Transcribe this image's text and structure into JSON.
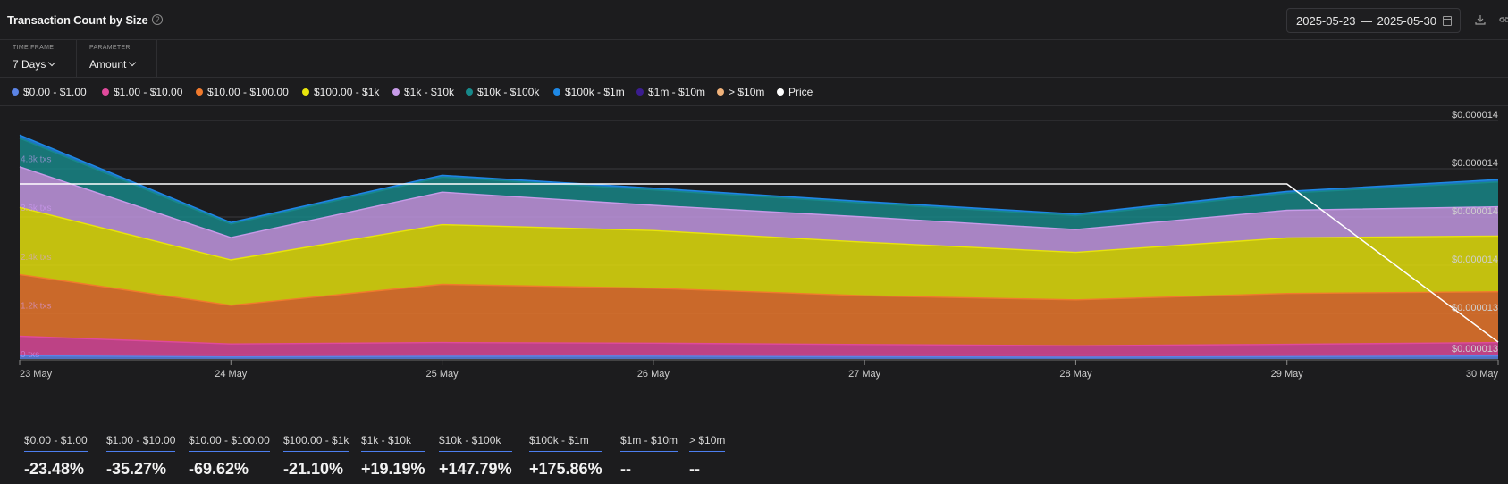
{
  "header": {
    "title": "Transaction Count by Size",
    "help_icon": "question-circle-icon",
    "date_from": "2025-05-23",
    "date_to": "2025-05-30",
    "calendar_icon": "calendar-icon",
    "download_icon": "download-icon",
    "link_icon": "link-icon"
  },
  "controls": {
    "timeframe_label": "TIME FRAME",
    "timeframe_value": "7 Days",
    "parameter_label": "PARAMETER",
    "parameter_value": "Amount"
  },
  "legend": [
    {
      "label": "$0.00 - $1.00",
      "color": "#5b84e6"
    },
    {
      "label": "$1.00 - $10.00",
      "color": "#e04a9c"
    },
    {
      "label": "$10.00 - $100.00",
      "color": "#f07a2d"
    },
    {
      "label": "$100.00 - $1k",
      "color": "#e8e40c"
    },
    {
      "label": "$1k - $10k",
      "color": "#c79be8"
    },
    {
      "label": "$10k - $100k",
      "color": "#17898a"
    },
    {
      "label": "$100k - $1m",
      "color": "#1e88e5"
    },
    {
      "label": "$1m - $10m",
      "color": "#3b1d8f"
    },
    {
      "label": "> $10m",
      "color": "#f0b27a"
    },
    {
      "label": "Price",
      "color": "#ffffff"
    }
  ],
  "chart_data": {
    "type": "area",
    "stacked": true,
    "x": [
      "23 May",
      "24 May",
      "25 May",
      "26 May",
      "27 May",
      "28 May",
      "29 May",
      "30 May"
    ],
    "left_axis_ticks": [
      "0 txs",
      "1.2k txs",
      "2.4k txs",
      "3.6k txs",
      "4.8k txs"
    ],
    "left_axis_values": [
      0,
      1200,
      2400,
      3600,
      4800
    ],
    "right_axis_ticks": [
      "$0.000013",
      "$0.000013",
      "$0.000014",
      "$0.000014",
      "$0.000014",
      "$0.000014"
    ],
    "ylim": [
      0,
      6000
    ],
    "grid": true,
    "legend_position": "top-left",
    "series": [
      {
        "name": "$0.00 - $1.00",
        "color": "#5b84e6",
        "values": [
          80,
          50,
          65,
          70,
          55,
          45,
          60,
          75
        ]
      },
      {
        "name": "$1.00 - $10.00",
        "color": "#e04a9c",
        "values": [
          480,
          320,
          340,
          320,
          300,
          280,
          300,
          330
        ]
      },
      {
        "name": "$10.00 - $100.00",
        "color": "#f07a2d",
        "values": [
          1520,
          950,
          1430,
          1350,
          1200,
          1130,
          1250,
          1250
        ]
      },
      {
        "name": "$100.00 - $1k",
        "color": "#e8e40c",
        "values": [
          1650,
          1120,
          1470,
          1420,
          1320,
          1170,
          1370,
          1370
        ]
      },
      {
        "name": "$1k - $10k",
        "color": "#c79be8",
        "values": [
          1000,
          550,
          800,
          620,
          620,
          560,
          680,
          720
        ]
      },
      {
        "name": "$10k - $100k",
        "color": "#17898a",
        "values": [
          700,
          330,
          370,
          380,
          340,
          340,
          420,
          610
        ]
      },
      {
        "name": "$100k - $1m",
        "color": "#1e88e5",
        "values": [
          80,
          40,
          45,
          45,
          40,
          45,
          45,
          60
        ]
      },
      {
        "name": "$1m - $10m",
        "color": "#3b1d8f",
        "values": [
          0,
          0,
          0,
          0,
          0,
          0,
          0,
          0
        ]
      },
      {
        "name": "> $10m",
        "color": "#f0b27a",
        "values": [
          0,
          0,
          0,
          0,
          0,
          0,
          0,
          0
        ]
      }
    ],
    "price_series": {
      "name": "Price",
      "color": "#ffffff",
      "values": [
        1.4e-05,
        1.4e-05,
        1.4e-05,
        1.4e-05,
        1.4e-05,
        1.4e-05,
        1.4e-05,
        1.32e-05
      ]
    }
  },
  "stats": [
    {
      "label": "$0.00 - $1.00",
      "value": "-23.48%"
    },
    {
      "label": "$1.00 - $10.00",
      "value": "-35.27%"
    },
    {
      "label": "$10.00 - $100.00",
      "value": "-69.62%"
    },
    {
      "label": "$100.00 - $1k",
      "value": "-21.10%"
    },
    {
      "label": "$1k - $10k",
      "value": "+19.19%"
    },
    {
      "label": "$10k - $100k",
      "value": "+147.79%"
    },
    {
      "label": "$100k - $1m",
      "value": "+175.86%"
    },
    {
      "label": "$1m - $10m",
      "value": "--"
    },
    {
      "label": "> $10m",
      "value": "--"
    }
  ]
}
